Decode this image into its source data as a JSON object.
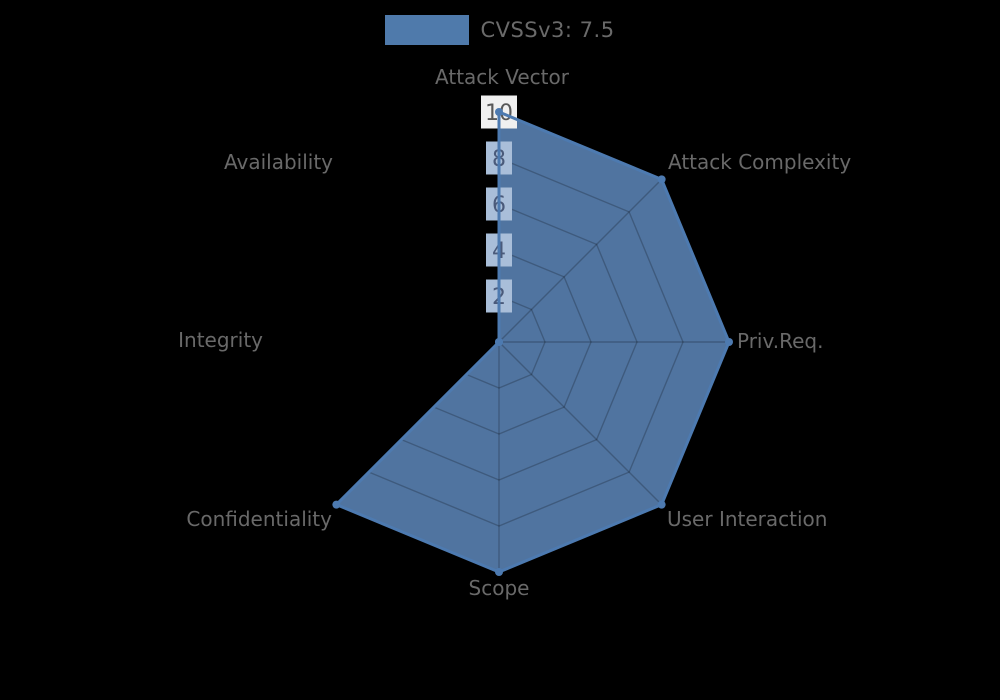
{
  "legend": {
    "label": "CVSSv3: 7.5",
    "swatch_color": "#4F7AAB"
  },
  "chart_data": {
    "type": "radar",
    "title": "CVSSv3: 7.5",
    "categories": [
      "Attack Vector",
      "Attack Complexity",
      "Priv.Req.",
      "User Interaction",
      "Scope",
      "Confidentiality",
      "Integrity",
      "Availability"
    ],
    "series": [
      {
        "name": "CVSSv3: 7.5",
        "values": [
          10,
          10,
          10,
          10,
          10,
          10,
          0,
          0
        ]
      }
    ],
    "ticks": [
      2,
      4,
      6,
      8,
      10
    ],
    "rmin": 0,
    "rmax": 10,
    "grid": "octagonal-web",
    "legend_position": "top",
    "colors": {
      "background": "#000000",
      "fill": "#5074A0",
      "stroke": "#4D7AB0",
      "point": "#4D7AB0",
      "grid_line": "rgba(0,0,0,0.22)",
      "axis_overlay_line": "rgba(40,55,80,0.35)",
      "tick_backdrop_outside": "#F0F0F0",
      "tick_backdrop_inside": "#A9BED9",
      "tick_text_outside": "#585858",
      "tick_text_inside": "#4A5A7A",
      "axis_label": "#696969"
    }
  }
}
